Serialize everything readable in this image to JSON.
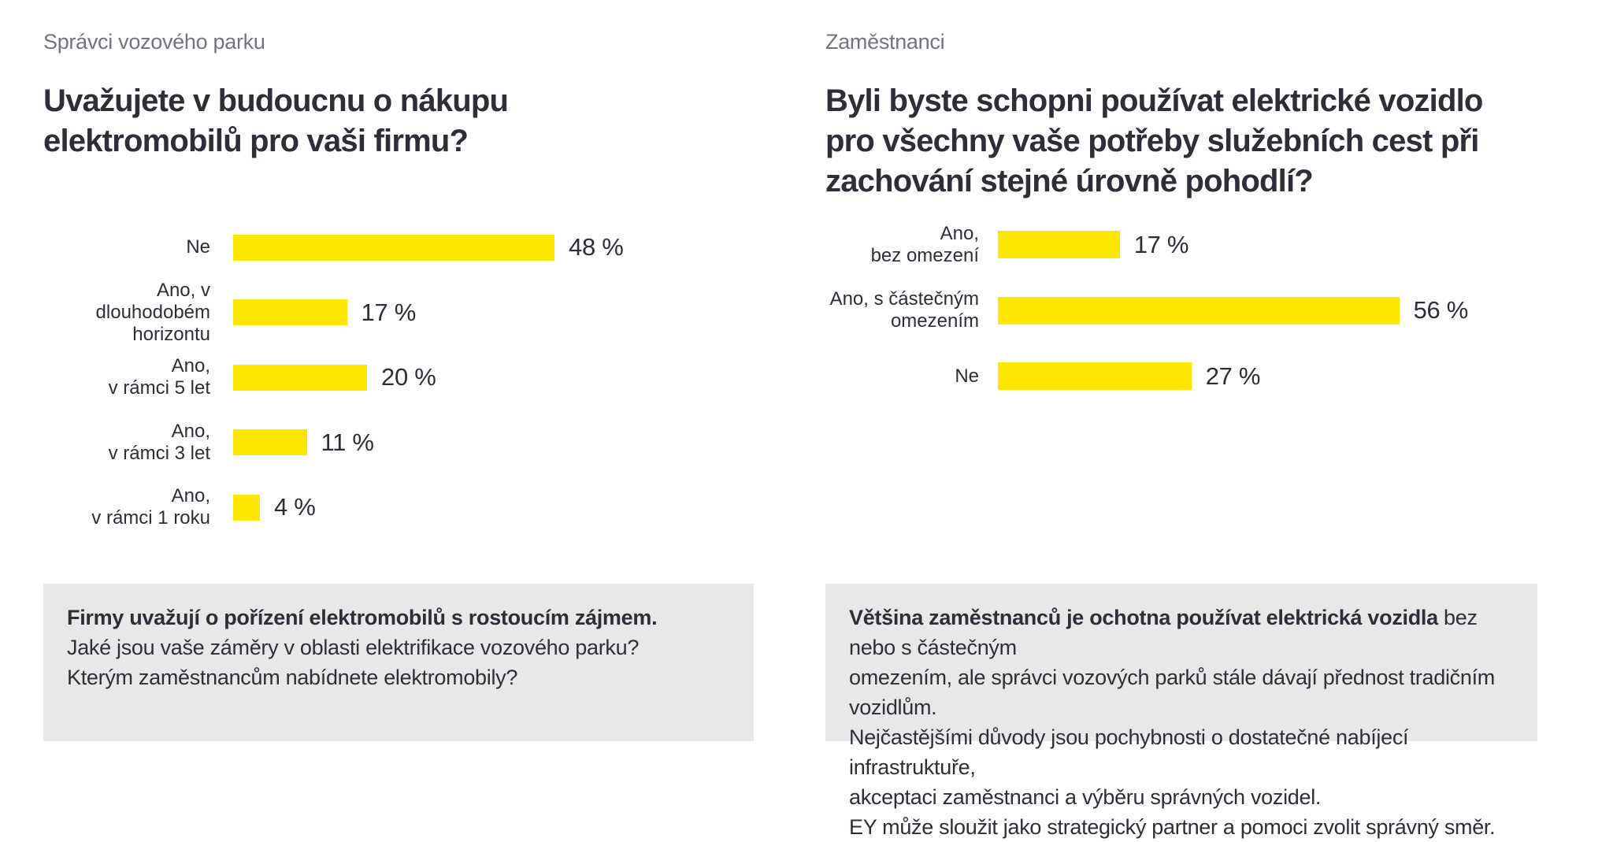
{
  "colors": {
    "bar_yellow": "#FFE600",
    "title_dark": "#2E2E38",
    "subtitle_gray": "#747480",
    "note_background": "#E8E8E8"
  },
  "panels": [
    {
      "subtitle": "Správci vozového parku",
      "title_lines": [
        "Uvažujete v budoucnu o nákupu",
        "elektromobilů pro vaši firmu?"
      ],
      "bars": [
        {
          "label_lines": [
            "Ne",
            ""
          ],
          "value": 48,
          "value_label": "48 %"
        },
        {
          "label_lines": [
            "Ano, v dlouhodobém",
            "horizontu"
          ],
          "value": 17,
          "value_label": "17 %"
        },
        {
          "label_lines": [
            "Ano,",
            "v rámci 5 let"
          ],
          "value": 20,
          "value_label": "20 %"
        },
        {
          "label_lines": [
            "Ano,",
            "v rámci 3 let"
          ],
          "value": 11,
          "value_label": "11 %"
        },
        {
          "label_lines": [
            "Ano,",
            "v rámci 1 roku"
          ],
          "value": 4,
          "value_label": "4 %"
        }
      ],
      "note": {
        "bold": "Firmy uvažují o pořízení elektromobilů s rostoucím zájmem.",
        "lines": [
          "Jaké jsou vaše záměry v oblasti elektrifikace vozového parku?",
          "Kterým zaměstnancům nabídnete elektromobily?"
        ]
      }
    },
    {
      "subtitle": "Zaměstnanci",
      "title_lines": [
        "Byli byste schopni používat elektrické vozidlo",
        "pro všechny vaše potřeby služebních cest při",
        "zachování stejné úrovně pohodlí?"
      ],
      "bars": [
        {
          "label_lines": [
            "Ano,",
            "bez omezení"
          ],
          "value": 17,
          "value_label": "17 %"
        },
        {
          "label_lines": [
            "Ano, s částečným",
            "omezením"
          ],
          "value": 56,
          "value_label": "56 %"
        },
        {
          "label_lines": [
            "Ne",
            ""
          ],
          "value": 27,
          "value_label": "27 %"
        }
      ],
      "note": {
        "bold": "Většina zaměstnanců je ochotna používat elektrická vozidla",
        "after_bold": " bez nebo s částečným",
        "lines": [
          "omezením, ale správci vozových parků stále dávají přednost tradičním vozidlům.",
          "Nejčastějšími důvody jsou pochybnosti o dostatečné nabíjecí infrastruktuře,",
          "akceptaci zaměstnanci a výběru správných vozidel.",
          "EY může sloužit jako strategický partner a pomoci zvolit správný směr."
        ]
      }
    }
  ],
  "chart_data": [
    {
      "type": "bar",
      "orientation": "horizontal",
      "subtitle": "Správci vozového parku",
      "title": "Uvažujete v budoucnu o nákupu elektromobilů pro vaši firmu?",
      "categories": [
        "Ne",
        "Ano, v dlouhodobém horizontu",
        "Ano, v rámci 5 let",
        "Ano, v rámci 3 let",
        "Ano, v rámci 1 roku"
      ],
      "values": [
        48,
        17,
        20,
        11,
        4
      ],
      "unit": "%",
      "data_labels": [
        "48 %",
        "17 %",
        "20 %",
        "11 %",
        "4 %"
      ],
      "bar_color": "#FFE600",
      "xlim": [
        0,
        60
      ],
      "grid": false,
      "legend": false
    },
    {
      "type": "bar",
      "orientation": "horizontal",
      "subtitle": "Zaměstnanci",
      "title": "Byli byste schopni používat elektrické vozidlo pro všechny vaše potřeby služebních cest při zachování stejné úrovně pohodlí?",
      "categories": [
        "Ano, bez omezení",
        "Ano, s částečným omezením",
        "Ne"
      ],
      "values": [
        17,
        56,
        27
      ],
      "unit": "%",
      "data_labels": [
        "17 %",
        "56 %",
        "27 %"
      ],
      "bar_color": "#FFE600",
      "xlim": [
        0,
        60
      ],
      "grid": false,
      "legend": false
    }
  ]
}
